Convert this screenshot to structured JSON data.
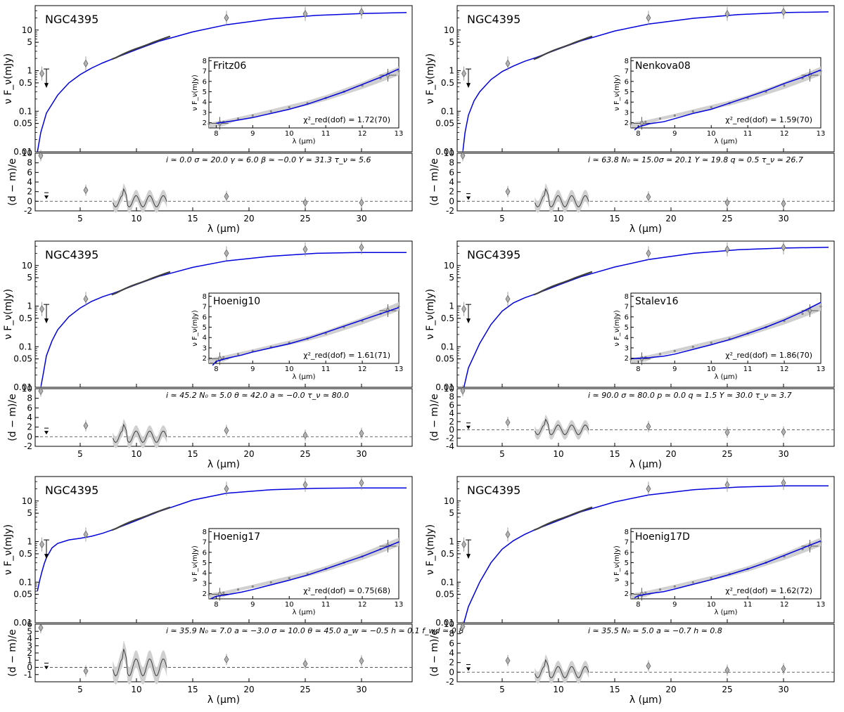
{
  "figure": {
    "object_name": "NGC4395",
    "sed_ylabel": "ν F_ν(mJy)",
    "resid_ylabel": "(d − m)/e",
    "xlabel": "λ (μm)",
    "inset_ylabel": "ν F_ν(mJy)",
    "inset_xlabel": "λ (μm)"
  },
  "chart_data": [
    {
      "type": "line",
      "model": "Fritz06",
      "chi2": "χ²_red(dof) = 1.72(70)",
      "params": "i ≃ 0.0    σ ≃ 20.0  γ ≃ 6.0    β ≃ −0.0  Y ≃ 31.3  τ_ν ≃ 5.6",
      "curve": [
        [
          1.2,
          0.01
        ],
        [
          1.5,
          0.03
        ],
        [
          2,
          0.09
        ],
        [
          3,
          0.25
        ],
        [
          4,
          0.5
        ],
        [
          5,
          0.8
        ],
        [
          6,
          1.15
        ],
        [
          7,
          1.55
        ],
        [
          8,
          2.0
        ],
        [
          10,
          3.3
        ],
        [
          12,
          5.3
        ],
        [
          15,
          9
        ],
        [
          18,
          13.5
        ],
        [
          22,
          19
        ],
        [
          26,
          23
        ],
        [
          30,
          25.5
        ],
        [
          34,
          27
        ]
      ],
      "resid_ylim": [
        -2,
        10
      ],
      "resid_yticks": [
        -2,
        0,
        2,
        4,
        6,
        8,
        10
      ],
      "resid_points": [
        [
          1.5,
          9.5
        ],
        [
          5.5,
          2.3
        ],
        [
          18,
          1.0
        ],
        [
          25,
          -0.3
        ],
        [
          30,
          -0.3
        ]
      ],
      "resid_upper": [
        [
          2,
          1.2
        ]
      ],
      "inset": [
        [
          8,
          1.95
        ],
        [
          8.5,
          2.2
        ],
        [
          9,
          2.5
        ],
        [
          9.5,
          2.9
        ],
        [
          10,
          3.3
        ],
        [
          10.5,
          3.8
        ],
        [
          11,
          4.4
        ],
        [
          11.5,
          5.0
        ],
        [
          12,
          5.7
        ],
        [
          12.5,
          6.4
        ],
        [
          13,
          7.2
        ]
      ]
    },
    {
      "type": "line",
      "model": "Nenkova08",
      "chi2": "χ²_red(dof) = 1.59(70)",
      "params": "i ≃ 63.8  N₀ ≃ 15.0σ ≃ 20.1  Y ≃ 19.8  q ≃ 0.5    τ_ν ≃ 26.7",
      "curve": [
        [
          1.5,
          0.01
        ],
        [
          1.7,
          0.03
        ],
        [
          2,
          0.08
        ],
        [
          2.5,
          0.18
        ],
        [
          3,
          0.3
        ],
        [
          4,
          0.6
        ],
        [
          5,
          0.95
        ],
        [
          6,
          1.3
        ],
        [
          7,
          1.7
        ],
        [
          8,
          2.1
        ],
        [
          10,
          3.4
        ],
        [
          12,
          5.4
        ],
        [
          15,
          9.5
        ],
        [
          18,
          14
        ],
        [
          22,
          19.5
        ],
        [
          26,
          24
        ],
        [
          30,
          27
        ],
        [
          34,
          28
        ]
      ],
      "resid_ylim": [
        -2,
        10
      ],
      "resid_yticks": [
        -2,
        0,
        2,
        4,
        6,
        8,
        10
      ],
      "resid_points": [
        [
          1.5,
          9.5
        ],
        [
          5.5,
          2.0
        ],
        [
          18,
          0.9
        ],
        [
          25,
          -0.3
        ],
        [
          30,
          -0.5
        ]
      ],
      "resid_upper": [
        [
          2,
          1.0
        ]
      ],
      "inset": [
        [
          7.9,
          1.3
        ],
        [
          8.0,
          1.6
        ],
        [
          8.3,
          1.9
        ],
        [
          8.7,
          2.1
        ],
        [
          9,
          2.4
        ],
        [
          9.5,
          2.9
        ],
        [
          10,
          3.3
        ],
        [
          10.5,
          3.9
        ],
        [
          11,
          4.5
        ],
        [
          11.5,
          5.1
        ],
        [
          12,
          5.8
        ],
        [
          12.5,
          6.4
        ],
        [
          13,
          7.1
        ]
      ]
    },
    {
      "type": "line",
      "model": "Hoenig10",
      "chi2": "χ²_red(dof) = 1.61(71)",
      "params": "i ≃ 45.2  N₀ ≃ 5.0   θ ≃ 42.0  a ≃ −0.0   τ_ν ≃ 80.0",
      "curve": [
        [
          1.5,
          0.01
        ],
        [
          1.7,
          0.02
        ],
        [
          2,
          0.06
        ],
        [
          2.5,
          0.14
        ],
        [
          3,
          0.26
        ],
        [
          4,
          0.55
        ],
        [
          5,
          0.9
        ],
        [
          6,
          1.3
        ],
        [
          7,
          1.7
        ],
        [
          8,
          2.1
        ],
        [
          10,
          3.4
        ],
        [
          12,
          5.4
        ],
        [
          15,
          9
        ],
        [
          18,
          13
        ],
        [
          22,
          17
        ],
        [
          26,
          20
        ],
        [
          30,
          21
        ],
        [
          34,
          21
        ]
      ],
      "resid_ylim": [
        -2,
        10
      ],
      "resid_yticks": [
        -2,
        0,
        2,
        4,
        6,
        8,
        10
      ],
      "resid_points": [
        [
          1.5,
          9.5
        ],
        [
          5.5,
          2.3
        ],
        [
          18,
          1.3
        ],
        [
          25,
          0.3
        ],
        [
          30,
          0.7
        ]
      ],
      "resid_upper": [
        [
          2,
          1.2
        ]
      ],
      "inset": [
        [
          7.9,
          1.3
        ],
        [
          8.0,
          1.7
        ],
        [
          8.3,
          2.0
        ],
        [
          8.7,
          2.3
        ],
        [
          9,
          2.6
        ],
        [
          9.5,
          3.0
        ],
        [
          10,
          3.4
        ],
        [
          10.5,
          3.9
        ],
        [
          11,
          4.5
        ],
        [
          11.5,
          5.1
        ],
        [
          12,
          5.7
        ],
        [
          12.5,
          6.3
        ],
        [
          13,
          6.9
        ]
      ]
    },
    {
      "type": "line",
      "model": "Stalev16",
      "chi2": "χ²_red(dof) = 1.86(70)",
      "params": "i ≃ 90.0  σ ≃ 80.0  p ≃ 0.0    q ≃ 1.5    Y ≃ 30.0  τ_ν ≃ 3.7",
      "curve": [
        [
          1.6,
          0.01
        ],
        [
          2,
          0.03
        ],
        [
          3,
          0.12
        ],
        [
          4,
          0.35
        ],
        [
          5,
          0.75
        ],
        [
          6,
          1.2
        ],
        [
          7,
          1.6
        ],
        [
          8,
          2.0
        ],
        [
          10,
          3.3
        ],
        [
          12,
          5.3
        ],
        [
          15,
          9.2
        ],
        [
          18,
          14
        ],
        [
          22,
          20
        ],
        [
          26,
          24.5
        ],
        [
          30,
          27
        ],
        [
          34,
          28
        ]
      ],
      "resid_ylim": [
        -4,
        10
      ],
      "resid_yticks": [
        -4,
        -2,
        0,
        2,
        4,
        6,
        8,
        10
      ],
      "resid_points": [
        [
          1.5,
          9.5
        ],
        [
          5.5,
          1.8
        ],
        [
          18,
          0.8
        ],
        [
          25,
          -0.6
        ],
        [
          30,
          -0.5
        ]
      ],
      "resid_upper": [
        [
          2,
          1.0
        ]
      ],
      "inset": [
        [
          7.8,
          1.95
        ],
        [
          8.3,
          2.05
        ],
        [
          8.7,
          2.2
        ],
        [
          9,
          2.4
        ],
        [
          9.5,
          2.85
        ],
        [
          10,
          3.3
        ],
        [
          10.5,
          3.8
        ],
        [
          11,
          4.4
        ],
        [
          11.5,
          5.0
        ],
        [
          12,
          5.7
        ],
        [
          12.5,
          6.5
        ],
        [
          13,
          7.4
        ]
      ]
    },
    {
      "type": "line",
      "model": "Hoenig17",
      "chi2": "χ²_red(dof) = 0.75(68)",
      "params": "i ≃ 35.9  N₀ ≃ 7.0   a ≃ −3.0   σ ≃ 10.0  θ ≃ 45.0  a_w ≃ −0.5 h ≃ 0.1      f_wd ≃ 0.8",
      "curve": [
        [
          1.2,
          0.06
        ],
        [
          1.4,
          0.11
        ],
        [
          1.6,
          0.18
        ],
        [
          1.8,
          0.28
        ],
        [
          2,
          0.4
        ],
        [
          2.5,
          0.7
        ],
        [
          3,
          0.9
        ],
        [
          4,
          1.1
        ],
        [
          5,
          1.2
        ],
        [
          6,
          1.35
        ],
        [
          7,
          1.6
        ],
        [
          8,
          2.0
        ],
        [
          10,
          3.3
        ],
        [
          12,
          5.5
        ],
        [
          15,
          10.5
        ],
        [
          18,
          15.5
        ],
        [
          22,
          19
        ],
        [
          26,
          20.5
        ],
        [
          30,
          21
        ],
        [
          34,
          21
        ]
      ],
      "resid_ylim": [
        -2,
        6
      ],
      "resid_yticks": [
        -1,
        0,
        1,
        2,
        3,
        4,
        5,
        6
      ],
      "resid_points": [
        [
          1.5,
          5.5
        ],
        [
          5.5,
          -0.5
        ],
        [
          18,
          1.1
        ],
        [
          25,
          0.5
        ],
        [
          30,
          0.9
        ]
      ],
      "resid_upper": [
        [
          2,
          0.2
        ]
      ],
      "inset": [
        [
          7.85,
          1.5
        ],
        [
          8.0,
          1.75
        ],
        [
          8.3,
          1.9
        ],
        [
          8.7,
          2.15
        ],
        [
          9,
          2.4
        ],
        [
          9.5,
          2.85
        ],
        [
          10,
          3.3
        ],
        [
          10.5,
          3.8
        ],
        [
          11,
          4.4
        ],
        [
          11.5,
          5.0
        ],
        [
          12,
          5.6
        ],
        [
          12.5,
          6.3
        ],
        [
          13,
          7.0
        ]
      ]
    },
    {
      "type": "line",
      "model": "Hoenig17D",
      "chi2": "χ²_red(dof) = 1.62(72)",
      "params": "i ≃ 35.5  N₀ ≃ 5.0   a ≃ −0.7   h ≃ 0.8",
      "curve": [
        [
          1.6,
          0.01
        ],
        [
          2,
          0.025
        ],
        [
          3,
          0.1
        ],
        [
          4,
          0.3
        ],
        [
          5,
          0.65
        ],
        [
          6,
          1.05
        ],
        [
          7,
          1.5
        ],
        [
          8,
          2.0
        ],
        [
          10,
          3.3
        ],
        [
          12,
          5.4
        ],
        [
          15,
          9.5
        ],
        [
          18,
          14
        ],
        [
          22,
          19
        ],
        [
          26,
          22
        ],
        [
          30,
          23.5
        ],
        [
          34,
          23.5
        ]
      ],
      "resid_ylim": [
        -2,
        10
      ],
      "resid_yticks": [
        -2,
        0,
        2,
        4,
        6,
        8,
        10
      ],
      "resid_points": [
        [
          1.5,
          9.5
        ],
        [
          5.5,
          2.4
        ],
        [
          18,
          1.3
        ],
        [
          25,
          0.4
        ],
        [
          30,
          0.7
        ]
      ],
      "resid_upper": [
        [
          2,
          1.0
        ]
      ],
      "inset": [
        [
          7.9,
          1.6
        ],
        [
          8.0,
          1.8
        ],
        [
          8.3,
          2.0
        ],
        [
          8.7,
          2.2
        ],
        [
          9,
          2.45
        ],
        [
          9.5,
          2.9
        ],
        [
          10,
          3.35
        ],
        [
          10.5,
          3.85
        ],
        [
          11,
          4.4
        ],
        [
          11.5,
          5.0
        ],
        [
          12,
          5.7
        ],
        [
          12.5,
          6.4
        ],
        [
          13,
          7.1
        ]
      ]
    }
  ],
  "shared": {
    "sed_points": [
      [
        1.6,
        0.85
      ],
      [
        5.5,
        1.5
      ],
      [
        18,
        20
      ],
      [
        25,
        25
      ],
      [
        30,
        28
      ]
    ],
    "sed_upper": [
      [
        2,
        1.1
      ]
    ],
    "spectrum": [
      [
        7.8,
        1.9
      ],
      [
        8.2,
        2.1
      ],
      [
        8.6,
        2.4
      ],
      [
        9,
        2.7
      ],
      [
        9.5,
        3.1
      ],
      [
        10,
        3.5
      ],
      [
        10.5,
        3.9
      ],
      [
        11,
        4.4
      ],
      [
        11.5,
        5.0
      ],
      [
        12,
        5.6
      ],
      [
        12.5,
        6.3
      ],
      [
        13,
        7.0
      ]
    ],
    "sed_ylim": [
      0.01,
      40
    ],
    "sed_yticks": [
      0.01,
      0.05,
      0.1,
      0.5,
      1,
      5,
      10
    ],
    "sed_ytick_labels": [
      "0.01",
      "0.05",
      "0.1",
      "0.5",
      "1",
      "5",
      "10"
    ],
    "xlim": [
      1,
      34.5
    ],
    "xticks": [
      5,
      10,
      15,
      20,
      25,
      30
    ],
    "inset_xlim": [
      7.8,
      13
    ],
    "inset_xticks": [
      8,
      9,
      10,
      11,
      12,
      13
    ],
    "inset_ylim": [
      1.5,
      8.3
    ],
    "inset_yticks": [
      2,
      3,
      4,
      5,
      6,
      7,
      8
    ],
    "inset_big_points": [
      [
        8.1,
        1.95
      ],
      [
        12.7,
        6.6
      ]
    ],
    "colors": {
      "model": "#0000dd",
      "marker_fill": "#b3b3b3",
      "band": "#d0d0d0",
      "spectrum": "#404040"
    }
  }
}
